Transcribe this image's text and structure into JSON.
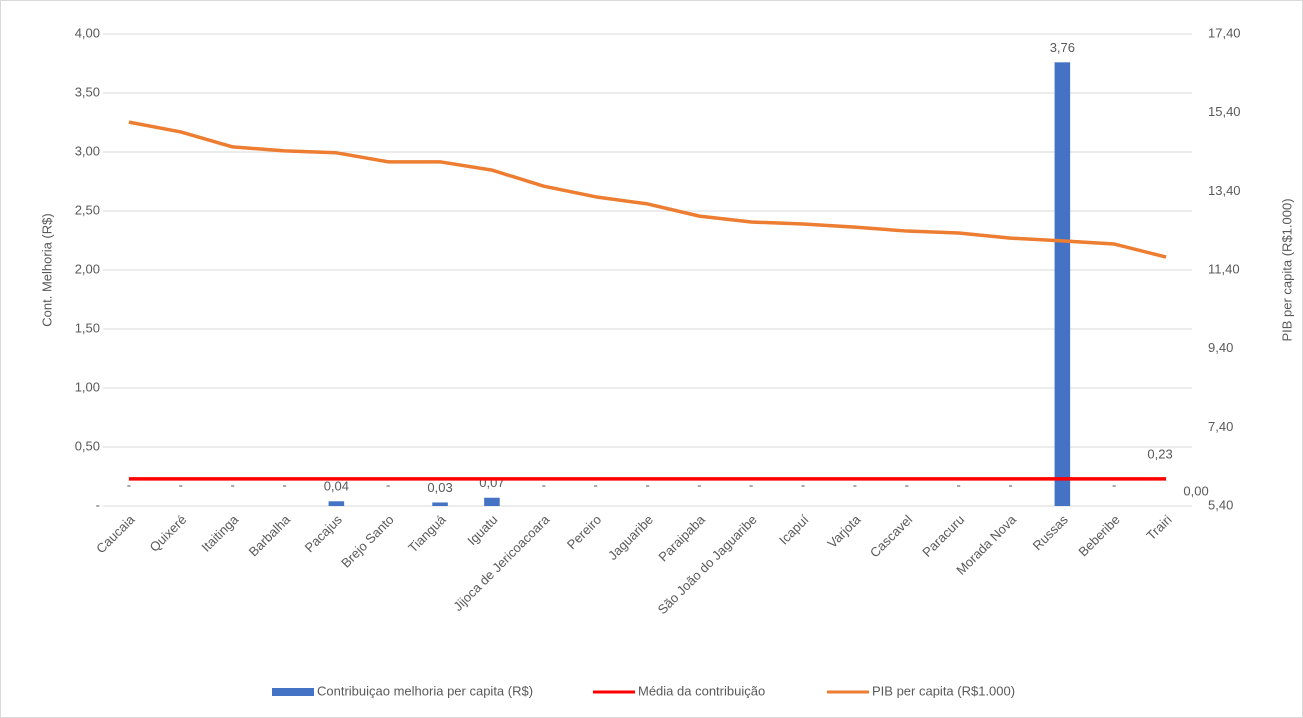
{
  "chart_data": {
    "type": "combo",
    "categories": [
      "Caucaia",
      "Quixeré",
      "Itaitinga",
      "Barbalha",
      "Pacajus",
      "Brejo Santo",
      "Tianguá",
      "Iguatu",
      "Jijoca de Jericoacoara",
      "Pereiro",
      "Jaguaribe",
      "Paraipaba",
      "São João do Jaguaribe",
      "Icapuí",
      "Varjota",
      "Cascavel",
      "Paracuru",
      "Morada Nova",
      "Russas",
      "Beberibe",
      "Trairi"
    ],
    "series": [
      {
        "name": "Contribuiçao melhoria per capita (R$)",
        "type": "bar",
        "color": "#4472c4",
        "axis": "y",
        "values": [
          0,
          0,
          0,
          0,
          0.04,
          0,
          0.03,
          0.07,
          0,
          0,
          0,
          0,
          0,
          0,
          0,
          0,
          0,
          0,
          3.76,
          0,
          0
        ],
        "value_labels": [
          "-",
          "-",
          "-",
          "-",
          "0,04",
          "-",
          "0,03",
          "0,07",
          "-",
          "-",
          "-",
          "-",
          "-",
          "-",
          "-",
          "-",
          "-",
          "-",
          "3,76",
          "-",
          "0,00"
        ]
      },
      {
        "name": "Média da contribuição",
        "type": "line",
        "color": "#ff0000",
        "axis": "y",
        "values": [
          0.23,
          0.23,
          0.23,
          0.23,
          0.23,
          0.23,
          0.23,
          0.23,
          0.23,
          0.23,
          0.23,
          0.23,
          0.23,
          0.23,
          0.23,
          0.23,
          0.23,
          0.23,
          0.23,
          0.23,
          0.23
        ],
        "value_labels": [
          null,
          null,
          null,
          null,
          null,
          null,
          null,
          null,
          null,
          null,
          null,
          null,
          null,
          null,
          null,
          null,
          null,
          null,
          null,
          null,
          "0,23"
        ]
      },
      {
        "name": "PIB per capita (R$1.000)",
        "type": "line",
        "color": "#ed7d31",
        "axis": "y2",
        "values": [
          15.16,
          14.91,
          14.53,
          14.43,
          14.38,
          14.15,
          14.15,
          13.94,
          13.53,
          13.26,
          13.08,
          12.77,
          12.62,
          12.57,
          12.49,
          12.39,
          12.34,
          12.21,
          12.14,
          12.06,
          11.73
        ]
      }
    ],
    "y_label": "Cont. Melhoria  (R$)",
    "y2_label": "PIB per capita (R$1.000)",
    "ylim": [
      0,
      4
    ],
    "yticks": [
      {
        "value": 0,
        "label": "-"
      },
      {
        "value": 0.5,
        "label": "0,50"
      },
      {
        "value": 1,
        "label": "1,00"
      },
      {
        "value": 1.5,
        "label": "1,50"
      },
      {
        "value": 2,
        "label": "2,00"
      },
      {
        "value": 2.5,
        "label": "2,50"
      },
      {
        "value": 3,
        "label": "3,00"
      },
      {
        "value": 3.5,
        "label": "3,50"
      },
      {
        "value": 4,
        "label": "4,00"
      }
    ],
    "y2lim": [
      5.4,
      17.4
    ],
    "y2ticks": [
      {
        "value": 5.4,
        "label": "5,40"
      },
      {
        "value": 7.4,
        "label": "7,40"
      },
      {
        "value": 9.4,
        "label": "9,40"
      },
      {
        "value": 11.4,
        "label": "11,40"
      },
      {
        "value": 13.4,
        "label": "13,40"
      },
      {
        "value": 15.4,
        "label": "15,40"
      },
      {
        "value": 17.4,
        "label": "17,40"
      }
    ],
    "grid": true,
    "legend": "bottom"
  }
}
